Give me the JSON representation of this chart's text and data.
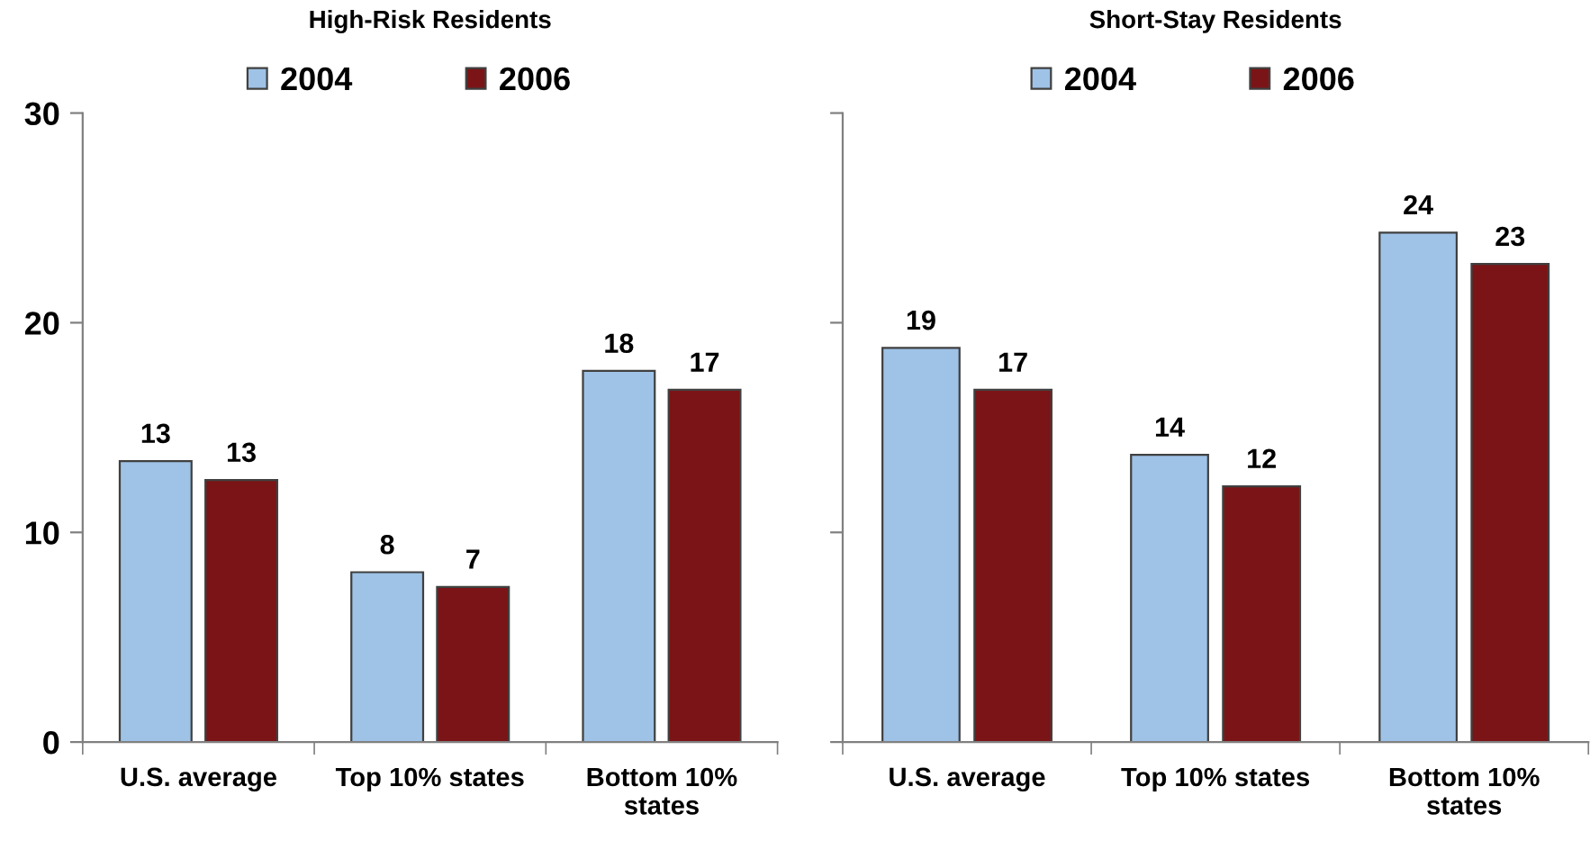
{
  "chart_data": [
    {
      "type": "bar",
      "title": "High-Risk Residents",
      "categories": [
        "U.S. average",
        "Top 10% states",
        "Bottom 10%\nstates"
      ],
      "series": [
        {
          "name": "2004",
          "color": "#9fc3e7",
          "values": [
            13.4,
            8.1,
            17.7
          ],
          "value_labels": [
            "13",
            "8",
            "18"
          ]
        },
        {
          "name": "2006",
          "color": "#7b1416",
          "values": [
            12.5,
            7.4,
            16.8
          ],
          "value_labels": [
            "13",
            "7",
            "17"
          ]
        }
      ],
      "ylim": [
        0,
        30
      ],
      "yticks": [
        0,
        10,
        20,
        30
      ],
      "legend": "top"
    },
    {
      "type": "bar",
      "title": "Short-Stay Residents",
      "categories": [
        "U.S. average",
        "Top 10% states",
        "Bottom 10%\nstates"
      ],
      "series": [
        {
          "name": "2004",
          "color": "#9fc3e7",
          "values": [
            18.8,
            13.7,
            24.3
          ],
          "value_labels": [
            "19",
            "14",
            "24"
          ]
        },
        {
          "name": "2006",
          "color": "#7b1416",
          "values": [
            16.8,
            12.2,
            22.8
          ],
          "value_labels": [
            "17",
            "12",
            "23"
          ]
        }
      ],
      "ylim": [
        0,
        30
      ],
      "yticks": [
        {
          "value": 0,
          "label": null
        },
        {
          "value": 10,
          "label": null
        },
        {
          "value": 20,
          "label": null
        },
        {
          "value": 30,
          "label": null
        }
      ],
      "tick_labels": "x",
      "legend": "top"
    }
  ]
}
